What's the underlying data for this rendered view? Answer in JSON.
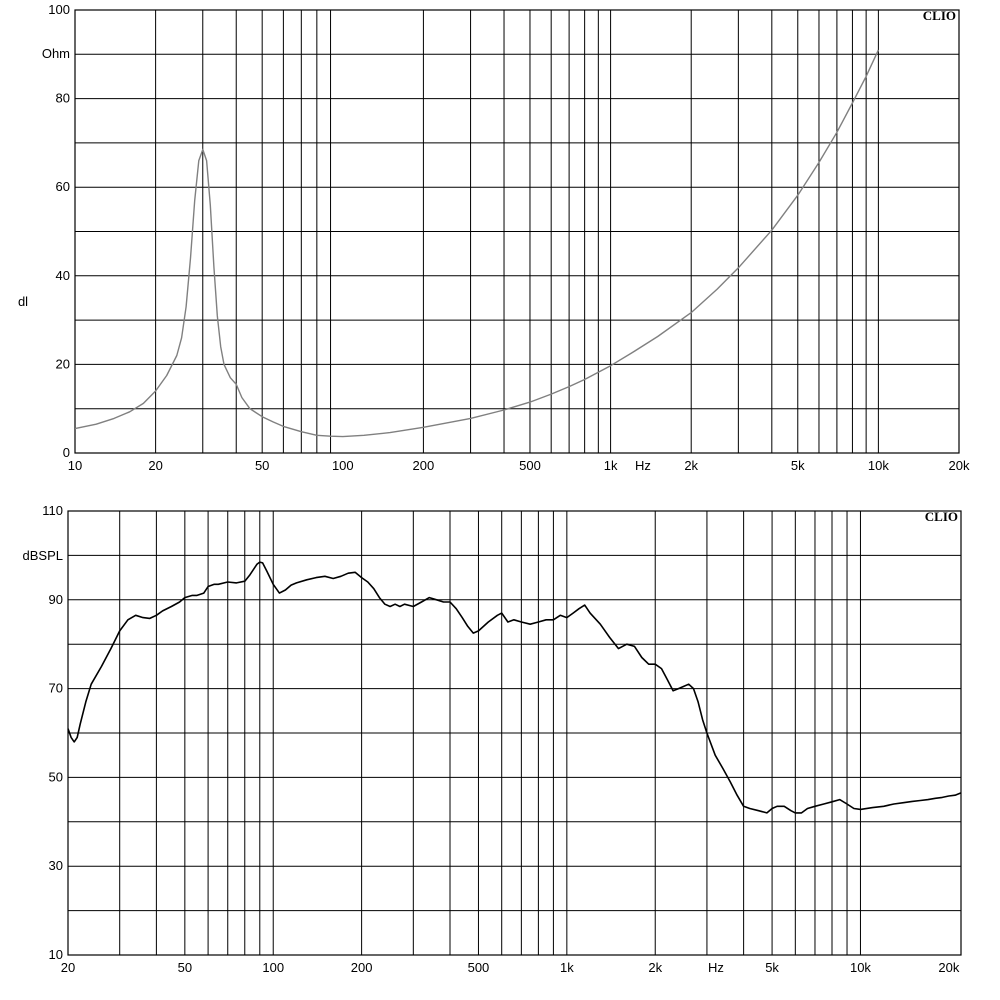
{
  "chart_data": [
    {
      "type": "line",
      "brand": "CLIO",
      "yunit": "Ohm",
      "ylabel": "dl",
      "xunit": "Hz",
      "xscale": "log",
      "xlim": [
        10,
        20000
      ],
      "ylim": [
        0,
        100
      ],
      "grid": true,
      "line_color": "#808080",
      "xticks": [
        {
          "v": 10,
          "label": "10"
        },
        {
          "v": 20,
          "label": "20"
        },
        {
          "v": 50,
          "label": "50"
        },
        {
          "v": 100,
          "label": "100"
        },
        {
          "v": 200,
          "label": "200"
        },
        {
          "v": 500,
          "label": "500"
        },
        {
          "v": 1000,
          "label": "1k"
        },
        {
          "v": 2000,
          "label": "2k"
        },
        {
          "v": 5000,
          "label": "5k"
        },
        {
          "v": 10000,
          "label": "10k"
        },
        {
          "v": 20000,
          "label": "20k"
        }
      ],
      "yticks": [
        {
          "v": 0,
          "label": "0"
        },
        {
          "v": 20,
          "label": "20"
        },
        {
          "v": 40,
          "label": "40"
        },
        {
          "v": 60,
          "label": "60"
        },
        {
          "v": 80,
          "label": "80"
        },
        {
          "v": 100,
          "label": "100"
        }
      ],
      "series": [
        {
          "x": [
            10,
            12,
            14,
            16,
            18,
            20,
            22,
            24,
            25,
            26,
            27,
            28,
            29,
            30,
            31,
            32,
            33,
            34,
            35,
            36,
            38,
            40,
            42,
            45,
            50,
            55,
            60,
            70,
            80,
            90,
            100,
            120,
            150,
            200,
            250,
            300,
            400,
            500,
            600,
            700,
            800,
            1000,
            1200,
            1500,
            2000,
            2500,
            3000,
            4000,
            5000,
            6000,
            7000,
            8000,
            9000,
            10000
          ],
          "y": [
            5.5,
            6.5,
            7.8,
            9.3,
            11.2,
            14,
            17.5,
            22,
            26,
            33,
            44,
            57,
            66,
            68.5,
            66,
            56,
            42,
            31,
            24,
            20,
            17,
            15.5,
            12.5,
            10,
            8.2,
            7,
            6,
            4.8,
            4,
            3.8,
            3.7,
            4,
            4.6,
            5.8,
            6.9,
            7.8,
            9.7,
            11.5,
            13.3,
            15,
            16.6,
            19.7,
            22.6,
            26.3,
            31.7,
            37,
            41.8,
            50.3,
            58.2,
            65.6,
            72.4,
            79,
            85,
            91
          ]
        }
      ]
    },
    {
      "type": "line",
      "brand": "CLIO",
      "yunit": "dBSPL",
      "xunit": "Hz",
      "xscale": "log",
      "xlim": [
        20,
        22000
      ],
      "ylim": [
        10,
        110
      ],
      "grid": true,
      "line_color": "#000000",
      "xticks": [
        {
          "v": 20,
          "label": "20"
        },
        {
          "v": 50,
          "label": "50"
        },
        {
          "v": 100,
          "label": "100"
        },
        {
          "v": 200,
          "label": "200"
        },
        {
          "v": 500,
          "label": "500"
        },
        {
          "v": 1000,
          "label": "1k"
        },
        {
          "v": 2000,
          "label": "2k"
        },
        {
          "v": 5000,
          "label": "5k"
        },
        {
          "v": 10000,
          "label": "10k"
        },
        {
          "v": 20000,
          "label": "20k"
        }
      ],
      "yticks": [
        {
          "v": 10,
          "label": "10"
        },
        {
          "v": 30,
          "label": "30"
        },
        {
          "v": 50,
          "label": "50"
        },
        {
          "v": 70,
          "label": "70"
        },
        {
          "v": 90,
          "label": "90"
        },
        {
          "v": 110,
          "label": "110"
        }
      ],
      "series": [
        {
          "x": [
            20,
            20.5,
            21,
            21.5,
            22,
            23,
            24,
            26,
            28,
            30,
            32,
            34,
            36,
            38,
            40,
            42,
            45,
            48,
            50,
            53,
            55,
            58,
            60,
            63,
            65,
            70,
            75,
            80,
            83,
            85,
            88,
            90,
            92,
            95,
            100,
            105,
            110,
            115,
            120,
            130,
            140,
            150,
            160,
            170,
            180,
            190,
            200,
            210,
            220,
            230,
            240,
            250,
            260,
            270,
            280,
            300,
            320,
            340,
            360,
            380,
            400,
            420,
            440,
            460,
            480,
            500,
            540,
            580,
            600,
            630,
            660,
            700,
            750,
            800,
            850,
            900,
            950,
            1000,
            1050,
            1100,
            1150,
            1200,
            1300,
            1400,
            1500,
            1600,
            1700,
            1800,
            1900,
            2000,
            2100,
            2200,
            2300,
            2400,
            2500,
            2600,
            2700,
            2800,
            2900,
            3000,
            3200,
            3400,
            3600,
            3800,
            4000,
            4200,
            4500,
            4800,
            5000,
            5200,
            5500,
            5800,
            6000,
            6300,
            6600,
            7000,
            7500,
            8000,
            8500,
            9000,
            9500,
            10000,
            11000,
            12000,
            13000,
            14000,
            15000,
            16000,
            17000,
            18000,
            19000,
            20000,
            21000,
            22000
          ],
          "y": [
            61,
            59,
            58,
            59,
            62,
            67,
            71,
            75,
            79,
            83,
            85.5,
            86.5,
            86,
            85.8,
            86.5,
            87.5,
            88.5,
            89.5,
            90.5,
            91,
            91,
            91.5,
            93,
            93.5,
            93.5,
            94,
            93.8,
            94.2,
            95.5,
            96.5,
            98,
            98.5,
            98.3,
            96.5,
            93.5,
            91.5,
            92.2,
            93.3,
            93.8,
            94.5,
            95,
            95.3,
            94.8,
            95.3,
            96,
            96.2,
            95,
            94,
            92.5,
            90.5,
            89,
            88.5,
            89,
            88.5,
            89,
            88.5,
            89.5,
            90.5,
            90,
            89.5,
            89.5,
            88,
            86,
            84,
            82.5,
            83,
            85,
            86.5,
            87,
            85,
            85.5,
            85,
            84.5,
            85,
            85.5,
            85.5,
            86.5,
            86,
            87,
            88,
            88.8,
            87,
            84.5,
            81.5,
            79,
            80,
            79.5,
            77,
            75.5,
            75.5,
            74.5,
            72,
            69.5,
            70,
            70.5,
            71,
            70,
            67,
            63,
            60,
            55,
            52,
            49,
            46,
            43.5,
            43,
            42.5,
            42,
            43,
            43.5,
            43.5,
            42.5,
            42,
            42,
            43,
            43.5,
            44,
            44.5,
            45,
            44,
            43,
            42.8,
            43.2,
            43.5,
            44,
            44.3,
            44.6,
            44.8,
            45,
            45.3,
            45.5,
            45.8,
            46,
            46.5
          ]
        }
      ]
    }
  ]
}
